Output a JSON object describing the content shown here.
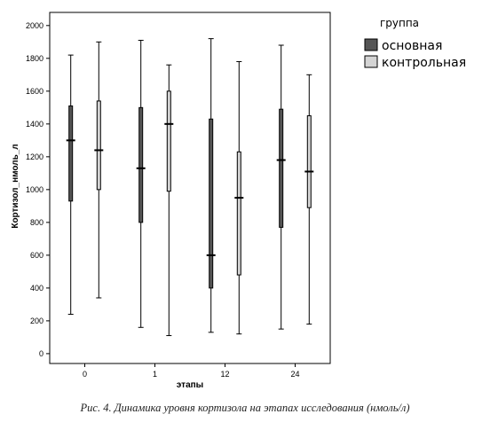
{
  "chart_data": {
    "type": "boxplot",
    "xlabel": "этапы",
    "ylabel": "Кортизол_нмоль_л",
    "ylim": [
      -60,
      2080
    ],
    "yticks": [
      0,
      200,
      400,
      600,
      800,
      1000,
      1200,
      1400,
      1600,
      1800,
      2000
    ],
    "grid": false,
    "categories": [
      "0",
      "1",
      "12",
      "24"
    ],
    "legend": {
      "title": "группа",
      "position": "outside-right-top"
    },
    "series": [
      {
        "name": "основная",
        "color": "#555555",
        "boxes": [
          {
            "min": 240,
            "q1": 930,
            "median": 1300,
            "q3": 1510,
            "max": 1820
          },
          {
            "min": 160,
            "q1": 800,
            "median": 1130,
            "q3": 1500,
            "max": 1910
          },
          {
            "min": 130,
            "q1": 400,
            "median": 600,
            "q3": 1430,
            "max": 1920
          },
          {
            "min": 150,
            "q1": 770,
            "median": 1180,
            "q3": 1490,
            "max": 1880
          }
        ]
      },
      {
        "name": "контрольная",
        "color": "#d4d4d4",
        "boxes": [
          {
            "min": 340,
            "q1": 1000,
            "median": 1240,
            "q3": 1540,
            "max": 1900
          },
          {
            "min": 110,
            "q1": 990,
            "median": 1400,
            "q3": 1600,
            "max": 1760
          },
          {
            "min": 120,
            "q1": 480,
            "median": 950,
            "q3": 1230,
            "max": 1780
          },
          {
            "min": 180,
            "q1": 890,
            "median": 1110,
            "q3": 1450,
            "max": 1700
          }
        ]
      }
    ]
  },
  "caption": "Рис. 4. Динамика уровня кортизола на этапах исследования (нмоль/л)"
}
